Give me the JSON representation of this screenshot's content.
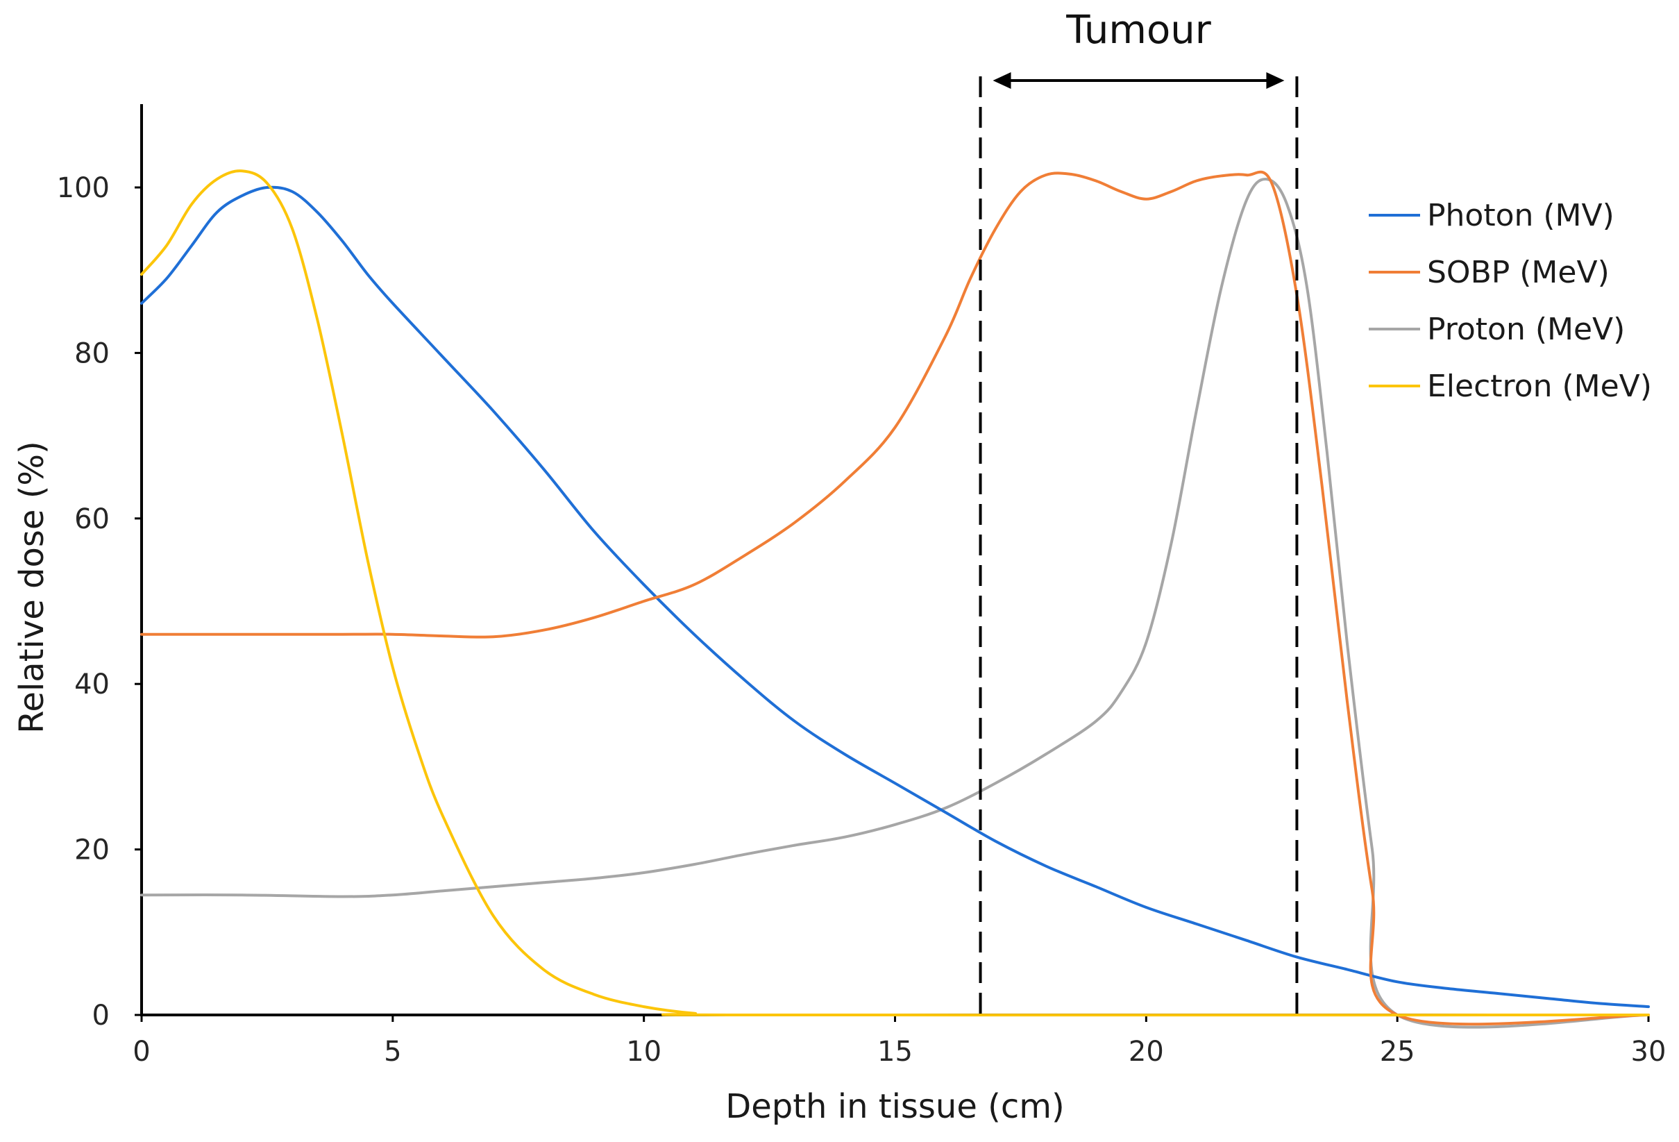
{
  "chart_data": {
    "type": "line",
    "title": "",
    "xlabel": "Depth in tissue (cm)",
    "ylabel": "Relative dose (%)",
    "xlim": [
      0,
      30
    ],
    "ylim": [
      0,
      110
    ],
    "xticks": [
      0,
      5,
      10,
      15,
      20,
      25,
      30
    ],
    "yticks": [
      0,
      20,
      40,
      60,
      80,
      100
    ],
    "grid": false,
    "legend_position": "right",
    "annotations": [
      {
        "label": "Tumour",
        "x_start": 16.7,
        "x_end": 23.0,
        "style": "dashed vertical lines with double arrow"
      }
    ],
    "series": [
      {
        "name": "Photon (MV)",
        "color": "#1f6fd6",
        "points": [
          [
            0,
            86
          ],
          [
            0.5,
            89
          ],
          [
            1,
            93
          ],
          [
            1.5,
            97
          ],
          [
            2,
            99
          ],
          [
            2.5,
            100
          ],
          [
            3,
            99.5
          ],
          [
            3.5,
            97
          ],
          [
            4,
            93.5
          ],
          [
            4.5,
            89.5
          ],
          [
            5,
            86
          ],
          [
            6,
            79.5
          ],
          [
            7,
            73
          ],
          [
            8,
            66
          ],
          [
            9,
            58.5
          ],
          [
            10,
            52
          ],
          [
            11,
            46
          ],
          [
            12,
            40.5
          ],
          [
            13,
            35.5
          ],
          [
            14,
            31.5
          ],
          [
            15,
            28
          ],
          [
            16,
            24.5
          ],
          [
            17,
            21
          ],
          [
            18,
            18
          ],
          [
            19,
            15.5
          ],
          [
            20,
            13
          ],
          [
            21,
            11
          ],
          [
            22,
            9
          ],
          [
            23,
            7
          ],
          [
            24,
            5.5
          ],
          [
            25,
            4
          ],
          [
            26,
            3.2
          ],
          [
            27,
            2.6
          ],
          [
            28,
            2
          ],
          [
            29,
            1.4
          ],
          [
            30,
            1
          ]
        ]
      },
      {
        "name": "SOBP (MeV)",
        "color": "#f07e36",
        "points": [
          [
            0,
            46
          ],
          [
            2,
            46
          ],
          [
            4,
            46
          ],
          [
            5,
            46
          ],
          [
            6,
            45.8
          ],
          [
            7,
            45.7
          ],
          [
            8,
            46.5
          ],
          [
            9,
            48
          ],
          [
            10,
            50
          ],
          [
            11,
            52
          ],
          [
            12,
            55.5
          ],
          [
            13,
            59.5
          ],
          [
            14,
            64.5
          ],
          [
            15,
            71
          ],
          [
            16,
            82
          ],
          [
            16.5,
            89
          ],
          [
            17,
            95
          ],
          [
            17.5,
            99.5
          ],
          [
            18,
            101.5
          ],
          [
            18.5,
            101.6
          ],
          [
            19,
            100.8
          ],
          [
            19.5,
            99.5
          ],
          [
            20,
            98.6
          ],
          [
            20.5,
            99.5
          ],
          [
            21,
            100.8
          ],
          [
            21.5,
            101.4
          ],
          [
            22,
            101.5
          ],
          [
            22.5,
            100.5
          ],
          [
            23,
            87
          ],
          [
            23.5,
            64
          ],
          [
            24,
            38
          ],
          [
            24.5,
            15
          ],
          [
            25,
            0
          ],
          [
            30,
            0
          ]
        ]
      },
      {
        "name": "Proton (MeV)",
        "color": "#a6a6a6",
        "points": [
          [
            0,
            14.5
          ],
          [
            2,
            14.5
          ],
          [
            4,
            14.3
          ],
          [
            5,
            14.5
          ],
          [
            6,
            15
          ],
          [
            7,
            15.5
          ],
          [
            8,
            16
          ],
          [
            9,
            16.5
          ],
          [
            10,
            17.2
          ],
          [
            11,
            18.2
          ],
          [
            12,
            19.4
          ],
          [
            13,
            20.5
          ],
          [
            14,
            21.5
          ],
          [
            15,
            23
          ],
          [
            16,
            25
          ],
          [
            17,
            28
          ],
          [
            18,
            31.5
          ],
          [
            19,
            35.5
          ],
          [
            19.5,
            39
          ],
          [
            20,
            45
          ],
          [
            20.5,
            57
          ],
          [
            21,
            73
          ],
          [
            21.5,
            88
          ],
          [
            22,
            98.5
          ],
          [
            22.4,
            101
          ],
          [
            22.8,
            98
          ],
          [
            23.2,
            88
          ],
          [
            23.6,
            68
          ],
          [
            24,
            45
          ],
          [
            24.5,
            20
          ],
          [
            25,
            0
          ],
          [
            30,
            0
          ]
        ]
      },
      {
        "name": "Electron (MeV)",
        "color": "#fcc50a",
        "points": [
          [
            0,
            89.5
          ],
          [
            0.5,
            93
          ],
          [
            1,
            98
          ],
          [
            1.5,
            101
          ],
          [
            2,
            102
          ],
          [
            2.5,
            100.5
          ],
          [
            3,
            95
          ],
          [
            3.5,
            84
          ],
          [
            4,
            70
          ],
          [
            4.5,
            55
          ],
          [
            5,
            42
          ],
          [
            5.5,
            32
          ],
          [
            6,
            24
          ],
          [
            7,
            12
          ],
          [
            8,
            5.5
          ],
          [
            9,
            2.5
          ],
          [
            10,
            1
          ],
          [
            11,
            0.2
          ],
          [
            12,
            0
          ],
          [
            30,
            0
          ]
        ]
      }
    ]
  }
}
